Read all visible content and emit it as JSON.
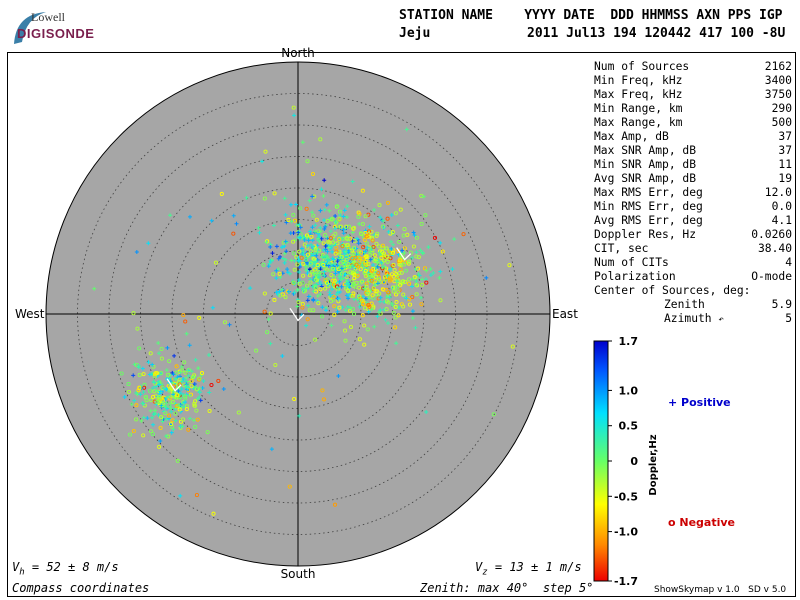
{
  "logo": {
    "top": "Lowell",
    "bottom": "DIGISONDE"
  },
  "header": {
    "columns": "STATION NAME    YYYY DATE  DDD HHMMSS AXN PPS IGP",
    "station": "Jeju",
    "values": "2011 Jul13 194 120442 417 100 -8U"
  },
  "compass": {
    "north": "North",
    "south": "South",
    "east": "East",
    "west": "West"
  },
  "stats": [
    {
      "label": "Num of Sources",
      "value": "2162"
    },
    {
      "label": "Min Freq, kHz",
      "value": "3400"
    },
    {
      "label": "Max Freq, kHz",
      "value": "3750"
    },
    {
      "label": "Min Range, km",
      "value": "290"
    },
    {
      "label": "Max Range, km",
      "value": "500"
    },
    {
      "label": "Max Amp, dB",
      "value": "37"
    },
    {
      "label": "Max SNR Amp, dB",
      "value": "37"
    },
    {
      "label": "Min SNR Amp, dB",
      "value": "11"
    },
    {
      "label": "Avg SNR Amp, dB",
      "value": "19"
    },
    {
      "label": "Max RMS Err, deg",
      "value": "12.0"
    },
    {
      "label": "Min RMS Err, deg",
      "value": "0.0"
    },
    {
      "label": "Avg RMS Err, deg",
      "value": "4.1"
    },
    {
      "label": "Doppler Res, Hz",
      "value": "0.0260"
    },
    {
      "label": "CIT, sec",
      "value": "38.40"
    },
    {
      "label": "Num of CITs",
      "value": "4"
    },
    {
      "label": "Polarization",
      "value": "O-mode"
    }
  ],
  "center": {
    "label": "Center of Sources, deg:",
    "zenith_label": "Zenith",
    "zenith_value": "5.9",
    "azimuth_label": "Azimuth",
    "azimuth_glyph": "↶",
    "azimuth_value": "5"
  },
  "colorbar": {
    "ticks": [
      "1.7",
      "1.0",
      "0.5",
      "0",
      "-0.5",
      "-1.0",
      "-1.7"
    ],
    "label": "Doppler,Hz",
    "positive": "+ Positive",
    "negative": "o Negative"
  },
  "bottom": {
    "vh": "V",
    "vh_sub": "h",
    "vh_rest": " = 52 ± 8 m/s",
    "vz": "V",
    "vz_sub": "z",
    "vz_rest": " = 13 ± 1 m/s",
    "compass_coords": "Compass coordinates",
    "zenith_info": "Zenith: max 40°  step 5°",
    "version": "ShowSkymap v 1.0   SD v 5.0"
  },
  "colors": {
    "disk": "#a6a6a6",
    "grid": "#404040",
    "positive_text": "#0000cc",
    "negative_text": "#cc0000"
  },
  "chart_data": {
    "type": "scatter",
    "polar": true,
    "zenith_max_deg": 40,
    "ring_step_deg": 5,
    "color_range_hz": [
      -1.7,
      1.7
    ],
    "clusters": [
      {
        "name": "center",
        "zenith_deg": 9,
        "azimuth_deg": 25,
        "spread_deg": 4,
        "count": 500,
        "doppler_mean": 0.3
      },
      {
        "name": "northeast",
        "zenith_deg": 14,
        "azimuth_deg": 60,
        "spread_deg": 4,
        "count": 500,
        "doppler_mean": -0.3
      },
      {
        "name": "southwest",
        "zenith_deg": 24,
        "azimuth_deg": 238,
        "spread_deg": 3,
        "count": 300,
        "doppler_mean": 0.05
      }
    ],
    "velocity_vectors": [
      {
        "zenith_deg": 19,
        "azimuth_deg": 63
      },
      {
        "zenith_deg": 1,
        "azimuth_deg": 180
      },
      {
        "zenith_deg": 23,
        "azimuth_deg": 238
      }
    ]
  }
}
